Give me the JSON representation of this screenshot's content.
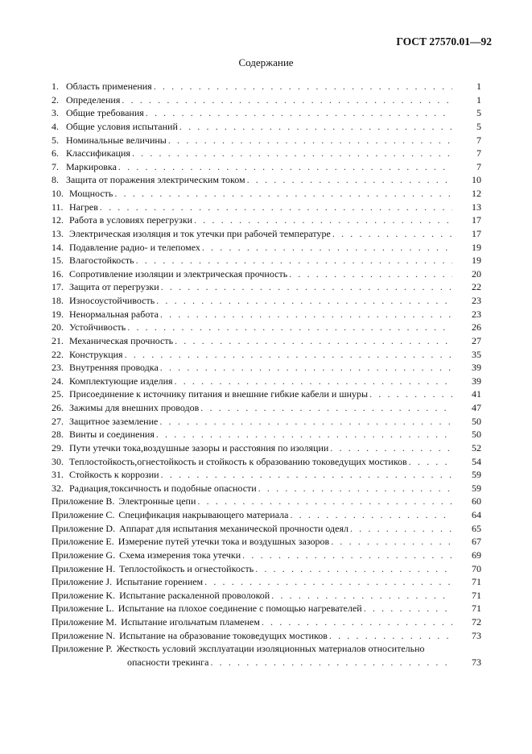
{
  "header": {
    "doc_code": "ГОСТ 27570.01—92"
  },
  "toc_title": "Содержание",
  "sections": [
    {
      "num": "1.",
      "title": "Область применения",
      "page": "1"
    },
    {
      "num": "2.",
      "title": "Определения",
      "page": "1"
    },
    {
      "num": "3.",
      "title": "Общие требования",
      "page": "5"
    },
    {
      "num": "4.",
      "title": "Общие условия испытаний",
      "page": "5"
    },
    {
      "num": "5.",
      "title": "Номинальные величины",
      "page": "7"
    },
    {
      "num": "6.",
      "title": "Классификация",
      "page": "7"
    },
    {
      "num": "7.",
      "title": "Маркировка",
      "page": "7"
    },
    {
      "num": "8.",
      "title": "Защита от поражения электрическим током",
      "page": "10"
    },
    {
      "num": "10.",
      "title": "Мощность",
      "page": "12"
    },
    {
      "num": "11.",
      "title": "Нагрев",
      "page": "13"
    },
    {
      "num": "12.",
      "title": "Работа в условиях перегрузки",
      "page": "17"
    },
    {
      "num": "13.",
      "title": "Электрическая изоляция и ток утечки при рабочей температуре",
      "page": "17"
    },
    {
      "num": "14.",
      "title": "Подавление радио- и телепомех",
      "page": "19"
    },
    {
      "num": "15.",
      "title": "Влагостойкость",
      "page": "19"
    },
    {
      "num": "16.",
      "title": "Сопротивление изоляции и электрическая прочность",
      "page": "20"
    },
    {
      "num": "17.",
      "title": "Защита от перегрузки",
      "page": "22"
    },
    {
      "num": "18.",
      "title": "Износоустойчивость",
      "page": "23"
    },
    {
      "num": "19.",
      "title": "Ненормальная работа",
      "page": "23"
    },
    {
      "num": "20.",
      "title": "Устойчивость",
      "page": "26"
    },
    {
      "num": "21.",
      "title": "Механическая прочность",
      "page": "27"
    },
    {
      "num": "22.",
      "title": "Конструкция",
      "page": "35"
    },
    {
      "num": "23.",
      "title": "Внутренняя проводка",
      "page": "39"
    },
    {
      "num": "24.",
      "title": "Комплектующие изделия",
      "page": "39"
    },
    {
      "num": "25.",
      "title": "Присоединение к источнику питания и внешние гибкие кабели и шнуры",
      "page": "41"
    },
    {
      "num": "26.",
      "title": "Зажимы для внешних проводов",
      "page": "47"
    },
    {
      "num": "27.",
      "title": "Защитное заземление",
      "page": "50"
    },
    {
      "num": "28.",
      "title": "Винты и соединения",
      "page": "50"
    },
    {
      "num": "29.",
      "title": "Пути утечки тока,воздушные зазоры и расстояния по изоляции",
      "page": "52"
    },
    {
      "num": "30.",
      "title": "Теплостойкость,огнестойкость и стойкость к образованию токоведущих мостиков",
      "page": "54"
    },
    {
      "num": "31.",
      "title": "Стойкость к коррозии",
      "page": "59"
    },
    {
      "num": "32.",
      "title": "Радиация,токсичность и подобные опасности",
      "page": "59"
    }
  ],
  "appendices": [
    {
      "label": "Приложение B.",
      "title": "Электронные цепи",
      "page": "60"
    },
    {
      "label": "Приложение C.",
      "title": "Спецификация накрывающего материала",
      "page": "64"
    },
    {
      "label": "Приложение D.",
      "title": "Аппарат для испытания механической прочности одеял",
      "page": "65"
    },
    {
      "label": "Приложение E.",
      "title": "Измерение путей утечки тока и воздушных зазоров",
      "page": "67"
    },
    {
      "label": "Приложение G.",
      "title": "Схема измерения тока утечки",
      "page": "69"
    },
    {
      "label": "Приложение H.",
      "title": "Теплостойкость и огнестойкость",
      "page": "70"
    },
    {
      "label": "Приложение J.",
      "title": "Испытание горением",
      "page": "71"
    },
    {
      "label": "Приложение K.",
      "title": "Испытание раскаленной проволокой",
      "page": "71"
    },
    {
      "label": "Приложение L.",
      "title": "Испытание на плохое соединение с помощью нагревателей",
      "page": "71"
    },
    {
      "label": "Приложение M.",
      "title": "Испытание игольчатым пламенем",
      "page": "72"
    },
    {
      "label": "Приложение N.",
      "title": "Испытание на образование токоведущих мостиков",
      "page": "73"
    }
  ],
  "last_appendix": {
    "label": "Приложение P.",
    "title_line1": "Жесткость условий эксплуатации изоляционных материалов относительно",
    "title_line2": "опасности трекинга",
    "page": "73"
  }
}
